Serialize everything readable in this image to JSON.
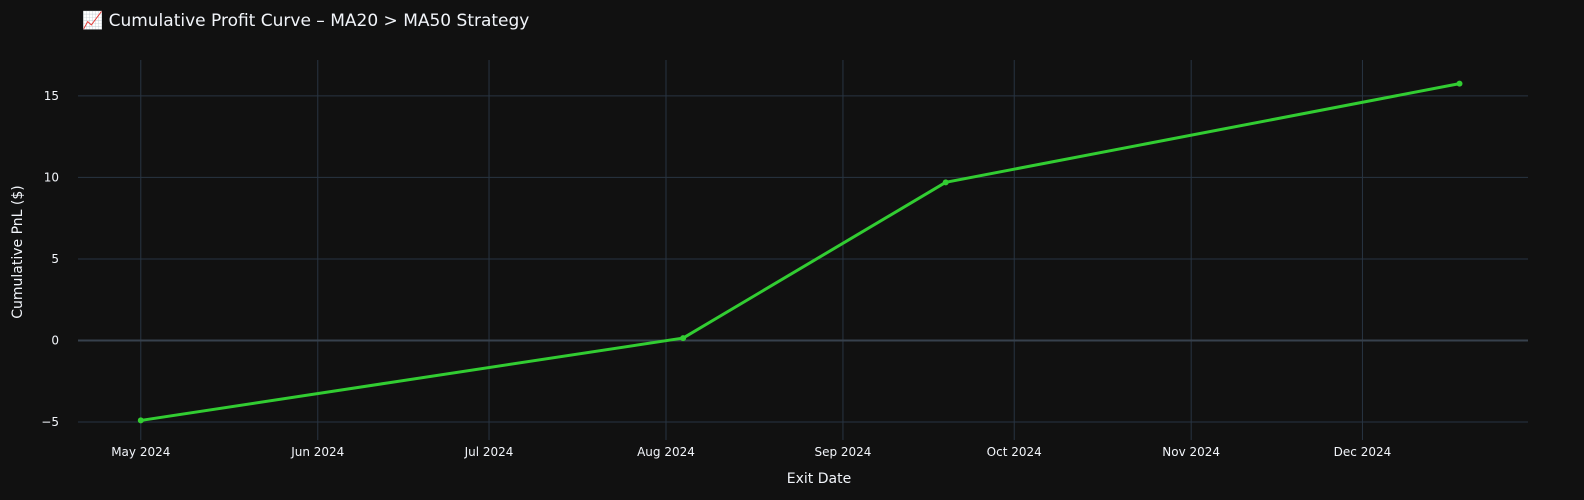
{
  "title": "📈 Cumulative Profit Curve – MA20 > MA50 Strategy",
  "colors": {
    "background": "#111111",
    "grid": "#283442",
    "zero_line": "#37414d",
    "line": "#32cd32",
    "text": "#f2f5fa"
  },
  "chart_data": {
    "type": "line",
    "title": "📈 Cumulative Profit Curve – MA20 > MA50 Strategy",
    "xlabel": "Exit Date",
    "ylabel": "Cumulative PnL ($)",
    "x_type": "date",
    "xlim": [
      "2024-04-20",
      "2024-12-30"
    ],
    "ylim": [
      -6.1,
      17.2
    ],
    "x_ticks": [
      {
        "date": "2024-05-01",
        "label": "May 2024"
      },
      {
        "date": "2024-06-01",
        "label": "Jun 2024"
      },
      {
        "date": "2024-07-01",
        "label": "Jul 2024"
      },
      {
        "date": "2024-08-01",
        "label": "Aug 2024"
      },
      {
        "date": "2024-09-01",
        "label": "Sep 2024"
      },
      {
        "date": "2024-10-01",
        "label": "Oct 2024"
      },
      {
        "date": "2024-11-01",
        "label": "Nov 2024"
      },
      {
        "date": "2024-12-01",
        "label": "Dec 2024"
      }
    ],
    "y_ticks": [
      {
        "value": -5,
        "label": "−5"
      },
      {
        "value": 0,
        "label": "0"
      },
      {
        "value": 5,
        "label": "5"
      },
      {
        "value": 10,
        "label": "10"
      },
      {
        "value": 15,
        "label": "15"
      }
    ],
    "grid": true,
    "legend": false,
    "series": [
      {
        "x": [
          "2024-05-01",
          "2024-08-04",
          "2024-09-19",
          "2024-12-18"
        ],
        "y": [
          -4.9,
          0.15,
          9.7,
          15.75
        ]
      }
    ]
  }
}
